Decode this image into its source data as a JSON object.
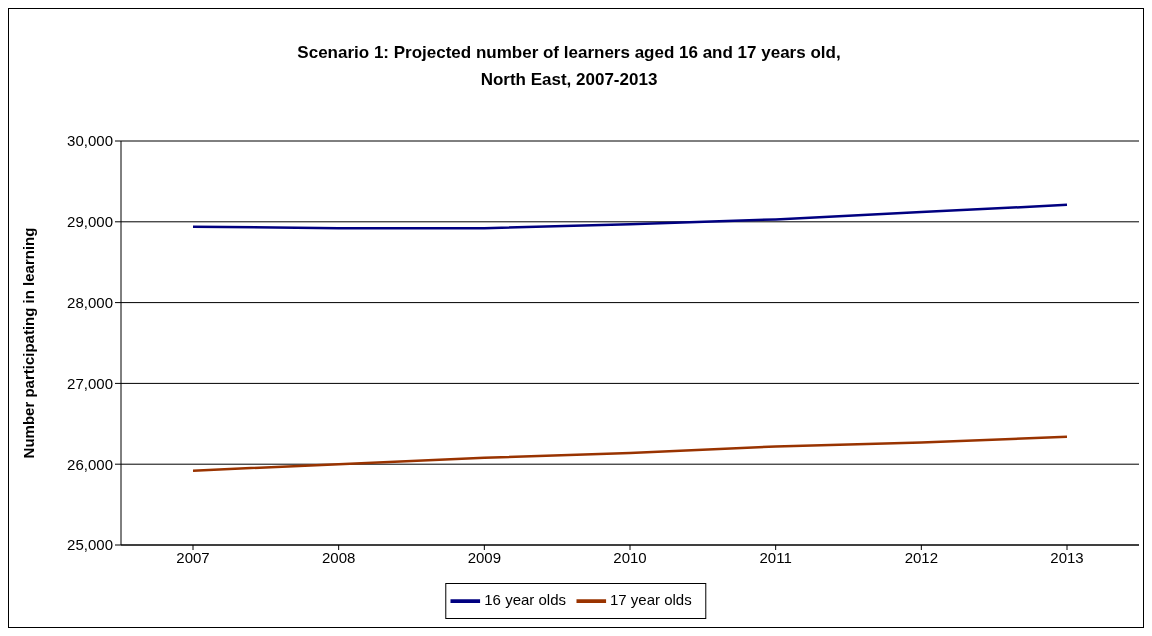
{
  "chart_data": {
    "type": "line",
    "title": "Scenario 1: Projected number of learners aged 16 and 17 years old, North East, 2007-2013",
    "ylabel": "Number participating in learning",
    "categories": [
      "2007",
      "2008",
      "2009",
      "2010",
      "2011",
      "2012",
      "2013"
    ],
    "series": [
      {
        "name": "16 year olds",
        "color": "#000080",
        "values": [
          28940,
          28920,
          28920,
          28970,
          29030,
          29120,
          29210
        ]
      },
      {
        "name": "17 year olds",
        "color": "#993300",
        "values": [
          25920,
          26000,
          26080,
          26140,
          26220,
          26270,
          26340
        ]
      }
    ],
    "ylim": [
      25000,
      30000
    ],
    "yticks": [
      {
        "value": 25000,
        "label": "25,000"
      },
      {
        "value": 26000,
        "label": "26,000"
      },
      {
        "value": 27000,
        "label": "27,000"
      },
      {
        "value": 28000,
        "label": "28,000"
      },
      {
        "value": 29000,
        "label": "29,000"
      },
      {
        "value": 30000,
        "label": "30,000"
      }
    ],
    "grid": "y",
    "legend": "bottom",
    "marker": "none",
    "line_style": "solid"
  }
}
